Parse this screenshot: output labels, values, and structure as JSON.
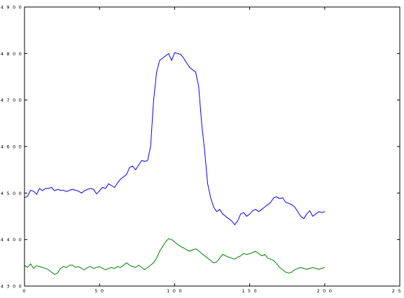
{
  "chart_data": {
    "type": "line",
    "xlabel": "",
    "ylabel": "",
    "xlim": [
      0,
      250
    ],
    "ylim": [
      4300,
      4900
    ],
    "x_ticks": [
      0,
      50,
      100,
      150,
      200,
      250
    ],
    "x_tick_labels": [
      "0",
      "5 0",
      "1 0 0",
      "1 5 0",
      "2 0 0",
      "2 5 0"
    ],
    "y_ticks": [
      4300,
      4400,
      4500,
      4600,
      4700,
      4800,
      4900
    ],
    "y_tick_labels": [
      "4 3 0 0",
      "4 4 0 0",
      "4 5 0 0",
      "4 6 0 0",
      "4 7 0 0",
      "4 8 0 0",
      "4 9 0 0"
    ],
    "grid": false,
    "legend": false,
    "series": [
      {
        "color": "#0000ff",
        "x": [
          0,
          2,
          4,
          6,
          8,
          10,
          12,
          14,
          16,
          18,
          20,
          22,
          24,
          26,
          28,
          30,
          32,
          34,
          36,
          38,
          40,
          42,
          44,
          46,
          48,
          50,
          52,
          54,
          56,
          58,
          60,
          62,
          64,
          66,
          68,
          70,
          72,
          74,
          76,
          78,
          80,
          82,
          84,
          86,
          88,
          90,
          92,
          94,
          96,
          98,
          100,
          102,
          104,
          106,
          108,
          110,
          112,
          114,
          116,
          118,
          120,
          122,
          124,
          126,
          128,
          130,
          132,
          134,
          136,
          138,
          140,
          142,
          144,
          146,
          148,
          150,
          152,
          154,
          156,
          158,
          160,
          162,
          164,
          166,
          168,
          170,
          172,
          174,
          176,
          178,
          180,
          182,
          184,
          186,
          188,
          190,
          192,
          194,
          196,
          198,
          200
        ],
        "values": [
          4490,
          4493,
          4506,
          4504,
          4497,
          4510,
          4505,
          4510,
          4510,
          4512,
          4505,
          4508,
          4506,
          4506,
          4503,
          4506,
          4508,
          4506,
          4504,
          4500,
          4505,
          4508,
          4510,
          4508,
          4498,
          4505,
          4512,
          4510,
          4520,
          4516,
          4512,
          4522,
          4530,
          4535,
          4540,
          4555,
          4558,
          4550,
          4560,
          4570,
          4568,
          4570,
          4600,
          4700,
          4760,
          4785,
          4790,
          4795,
          4800,
          4785,
          4802,
          4800,
          4798,
          4790,
          4780,
          4770,
          4765,
          4760,
          4730,
          4650,
          4590,
          4520,
          4490,
          4470,
          4460,
          4465,
          4455,
          4450,
          4445,
          4440,
          4432,
          4440,
          4455,
          4458,
          4450,
          4455,
          4462,
          4465,
          4460,
          4465,
          4470,
          4475,
          4480,
          4490,
          4492,
          4488,
          4490,
          4480,
          4478,
          4475,
          4470,
          4460,
          4450,
          4445,
          4455,
          4462,
          4450,
          4455,
          4460,
          4458,
          4460
        ]
      },
      {
        "color": "#008000",
        "x": [
          0,
          2,
          4,
          6,
          8,
          10,
          12,
          14,
          16,
          18,
          20,
          22,
          24,
          26,
          28,
          30,
          32,
          34,
          36,
          38,
          40,
          42,
          44,
          46,
          48,
          50,
          52,
          54,
          56,
          58,
          60,
          62,
          64,
          66,
          68,
          70,
          72,
          74,
          76,
          78,
          80,
          82,
          84,
          86,
          88,
          90,
          92,
          94,
          96,
          98,
          100,
          102,
          104,
          106,
          108,
          110,
          112,
          114,
          116,
          118,
          120,
          122,
          124,
          126,
          128,
          130,
          132,
          134,
          136,
          138,
          140,
          142,
          144,
          146,
          148,
          150,
          152,
          154,
          156,
          158,
          160,
          162,
          164,
          166,
          168,
          170,
          172,
          174,
          176,
          178,
          180,
          182,
          184,
          186,
          188,
          190,
          192,
          194,
          196,
          198,
          200
        ],
        "values": [
          4345,
          4340,
          4348,
          4338,
          4344,
          4342,
          4340,
          4338,
          4335,
          4330,
          4325,
          4328,
          4338,
          4342,
          4340,
          4345,
          4345,
          4340,
          4342,
          4338,
          4335,
          4340,
          4342,
          4338,
          4340,
          4342,
          4338,
          4335,
          4338,
          4340,
          4338,
          4342,
          4340,
          4345,
          4350,
          4345,
          4342,
          4340,
          4345,
          4340,
          4335,
          4340,
          4345,
          4350,
          4360,
          4375,
          4385,
          4395,
          4402,
          4400,
          4395,
          4390,
          4385,
          4382,
          4378,
          4375,
          4378,
          4380,
          4376,
          4370,
          4365,
          4360,
          4355,
          4350,
          4352,
          4360,
          4368,
          4365,
          4362,
          4360,
          4358,
          4362,
          4365,
          4370,
          4368,
          4370,
          4372,
          4375,
          4370,
          4365,
          4368,
          4360,
          4358,
          4355,
          4348,
          4340,
          4335,
          4330,
          4328,
          4330,
          4335,
          4338,
          4340,
          4338,
          4336,
          4338,
          4340,
          4338,
          4336,
          4338,
          4340
        ]
      }
    ]
  }
}
